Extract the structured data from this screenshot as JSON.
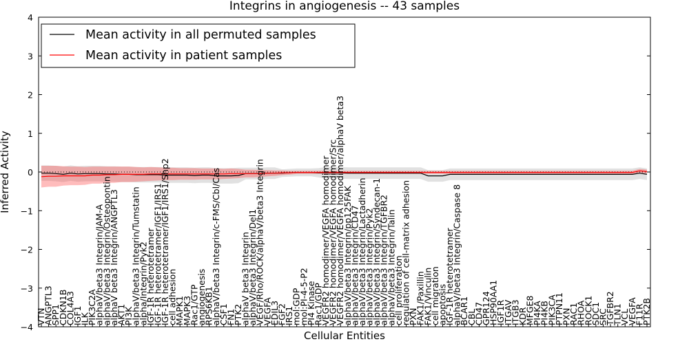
{
  "chart_data": {
    "type": "line",
    "title": "Integrins in angiogenesis -- 43 samples",
    "xlabel": "Cellular Entities",
    "ylabel": "Inferred Activity",
    "ylim": [
      -4,
      4
    ],
    "yticks": [
      -4,
      -3,
      -2,
      -1,
      0,
      1,
      2,
      3,
      4
    ],
    "legend_position": "top-left",
    "categories": [
      "VTN",
      "ANGPTL3",
      "SPP1",
      "CDKN1B",
      "COL4A3",
      "IGF1",
      "ILK",
      "PIK3C2A",
      "alphaV/beta3 Integrin/JAM-A",
      "alphaV/beta3 Integrin/Osteopontin",
      "alphaV beta3 Integrin/ANGPTL3",
      "AKT1",
      "PI3K",
      "alphaV/beta3 Integrin/Tumstatin",
      "alpha/Integrin/Pyk2",
      "IGF-1R heterotetramer",
      "IGF-1R heterotetramer/IGF1/IRS1",
      "IGF-1R heterotetramer/IGF1/IRS1/Shp2",
      "cell adhesion",
      "MAPK1",
      "MAPK3",
      "Rac1/GTP",
      "angiogenesis",
      "RPS6KB1",
      "alphaV/beta3 Integrin/c-FMS/Cbl/Cas",
      "CSF1",
      "FN1",
      "PTK2",
      "alphaV beta3 Integrin",
      "alphaV/beta3 Integrin/Del1",
      "VEGF/Rho/ROCK/alphaV/beta3 Integrin",
      "VEGFA",
      "EDIL3",
      "FGF2",
      "IRS1",
      "mol:GDP",
      "mol:PI-4-5-P2",
      "PI4 Kinase",
      "Rac1/GDP",
      "VEGFR2 homodimer/VEGFA homodimer",
      "VEGFR2 homodimer/VEGFA homodimer/Src",
      "VEGFR2 homodimer/VEGFA homodimer/alphaV beta3",
      "alphaV/beta3 Integrin/pp125FAK",
      "alphaV/beta3 Integrin/CD47",
      "alphaV/beta3 Integrin/Lactadherin",
      "alphaV/beta3 Integrin/Pyk2",
      "alphaV/beta3 Integrin/Syndecan-1",
      "alphaV/beta3 Integrin/TGFBR2",
      "alphaV/beta3 Integrin/Talin",
      "cell proliferation",
      "regulation of cell-matrix adhesion",
      "PXN",
      "FAK1/Paxillin",
      "FAK1/Vinculin",
      "cell migration",
      "apoptosis",
      "IGF-1R heterotetramer",
      "alphaV/beta3 Integrin/Caspase 8",
      "BCAR1",
      "CBL",
      "CD47",
      "GPR124",
      "HSP90AA1",
      "IGF1R",
      "ITGAV",
      "ITGB3",
      "KDR",
      "MFGE8",
      "PI4KA",
      "PI4KB",
      "PIK3CA",
      "PTPN11",
      "PXN",
      "RAC1",
      "RHOA",
      "ROCK1",
      "SDC1",
      "SRC",
      "TGFBR2",
      "TLN1",
      "VCL",
      "VEGFA",
      "F11R",
      "PTK2B"
    ],
    "series": [
      {
        "name": "Mean activity in all permuted samples",
        "color": "#000000",
        "values": [
          -0.03,
          -0.03,
          -0.04,
          -0.06,
          -0.03,
          -0.05,
          -0.04,
          -0.04,
          -0.04,
          -0.05,
          -0.05,
          -0.06,
          -0.06,
          -0.07,
          -0.07,
          -0.07,
          -0.07,
          -0.08,
          -0.08,
          -0.08,
          -0.08,
          -0.09,
          -0.08,
          -0.08,
          -0.1,
          -0.1,
          -0.1,
          -0.09,
          -0.04,
          -0.04,
          -0.04,
          -0.03,
          -0.03,
          -0.03,
          -0.02,
          -0.01,
          -0.01,
          -0.01,
          -0.02,
          -0.02,
          -0.02,
          -0.02,
          -0.03,
          -0.03,
          -0.03,
          -0.03,
          -0.03,
          -0.03,
          -0.03,
          -0.03,
          -0.03,
          -0.03,
          -0.03,
          -0.1,
          -0.1,
          -0.1,
          -0.06,
          -0.06,
          -0.06,
          -0.06,
          -0.06,
          -0.06,
          -0.06,
          -0.06,
          -0.06,
          -0.06,
          -0.06,
          -0.06,
          -0.06,
          -0.06,
          -0.06,
          -0.06,
          -0.06,
          -0.06,
          -0.06,
          -0.06,
          -0.06,
          -0.06,
          -0.06,
          -0.06,
          -0.06,
          -0.06,
          -0.03,
          -0.06
        ],
        "band": [
          0.2,
          0.2,
          0.2,
          0.2,
          0.2,
          0.2,
          0.2,
          0.2,
          0.2,
          0.2,
          0.2,
          0.2,
          0.2,
          0.2,
          0.2,
          0.2,
          0.2,
          0.2,
          0.2,
          0.2,
          0.2,
          0.2,
          0.2,
          0.2,
          0.2,
          0.2,
          0.2,
          0.2,
          0.15,
          0.15,
          0.15,
          0.15,
          0.15,
          0.1,
          0.1,
          0.1,
          0.1,
          0.1,
          0.12,
          0.15,
          0.15,
          0.15,
          0.15,
          0.15,
          0.15,
          0.15,
          0.15,
          0.15,
          0.15,
          0.15,
          0.15,
          0.15,
          0.15,
          0.15,
          0.15,
          0.15,
          0.15,
          0.15,
          0.15,
          0.15,
          0.15,
          0.15,
          0.15,
          0.15,
          0.15,
          0.15,
          0.15,
          0.15,
          0.15,
          0.15,
          0.15,
          0.15,
          0.15,
          0.15,
          0.15,
          0.15,
          0.15,
          0.15,
          0.15,
          0.15,
          0.15,
          0.15,
          0.15,
          0.15
        ]
      },
      {
        "name": "Mean activity in patient samples",
        "color": "#ff0000",
        "values": [
          -0.12,
          -0.11,
          -0.11,
          -0.1,
          -0.1,
          -0.1,
          -0.1,
          -0.08,
          -0.08,
          -0.07,
          -0.07,
          -0.06,
          -0.06,
          -0.06,
          -0.06,
          -0.05,
          -0.05,
          -0.05,
          -0.05,
          -0.05,
          -0.05,
          -0.05,
          -0.05,
          -0.05,
          -0.05,
          -0.05,
          -0.04,
          -0.04,
          -0.04,
          -0.04,
          -0.04,
          -0.03,
          -0.03,
          -0.02,
          -0.02,
          -0.01,
          -0.01,
          -0.01,
          -0.01,
          -0.01,
          -0.01,
          -0.01,
          -0.01,
          -0.01,
          -0.01,
          -0.01,
          -0.01,
          -0.01,
          -0.01,
          -0.01,
          -0.01,
          -0.01,
          -0.01,
          -0.01,
          -0.01,
          -0.01,
          -0.01,
          -0.01,
          -0.01,
          -0.01,
          -0.01,
          -0.01,
          -0.01,
          -0.01,
          -0.01,
          -0.01,
          -0.01,
          -0.01,
          -0.01,
          -0.01,
          -0.01,
          -0.01,
          -0.01,
          -0.01,
          -0.01,
          -0.01,
          -0.01,
          -0.01,
          -0.01,
          -0.01,
          -0.01,
          -0.01,
          0.03,
          0.01
        ],
        "band": [
          0.28,
          0.27,
          0.27,
          0.25,
          0.24,
          0.24,
          0.23,
          0.22,
          0.22,
          0.21,
          0.21,
          0.2,
          0.2,
          0.19,
          0.18,
          0.18,
          0.17,
          0.16,
          0.16,
          0.15,
          0.15,
          0.15,
          0.14,
          0.14,
          0.14,
          0.13,
          0.13,
          0.12,
          0.1,
          0.1,
          0.09,
          0.08,
          0.07,
          0.06,
          0.05,
          0.04,
          0.04,
          0.04,
          0.04,
          0.04,
          0.04,
          0.04,
          0.04,
          0.04,
          0.04,
          0.04,
          0.04,
          0.04,
          0.04,
          0.04,
          0.04,
          0.04,
          0.04,
          0.04,
          0.04,
          0.04,
          0.04,
          0.04,
          0.04,
          0.04,
          0.04,
          0.04,
          0.04,
          0.04,
          0.04,
          0.04,
          0.04,
          0.04,
          0.04,
          0.04,
          0.04,
          0.04,
          0.04,
          0.04,
          0.04,
          0.04,
          0.04,
          0.04,
          0.04,
          0.04,
          0.04,
          0.04,
          0.05,
          0.05
        ]
      }
    ]
  }
}
